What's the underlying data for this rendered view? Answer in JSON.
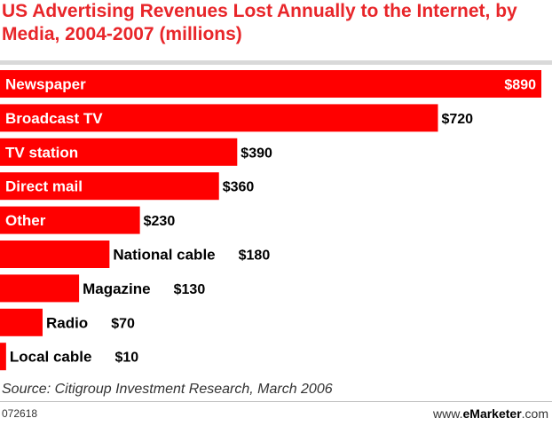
{
  "chart_data": {
    "type": "bar",
    "orientation": "horizontal",
    "title": "US Advertising Revenues Lost Annually to the Internet, by Media, 2004-2007 (millions)",
    "categories": [
      "Newspaper",
      "Broadcast TV",
      "TV station",
      "Direct mail",
      "Other",
      "National cable",
      "Magazine",
      "Radio",
      "Local cable"
    ],
    "values": [
      890,
      720,
      390,
      360,
      230,
      180,
      130,
      70,
      10
    ],
    "value_labels": [
      "$890",
      "$720",
      "$390",
      "$360",
      "$230",
      "$180",
      "$130",
      "$70",
      "$10"
    ],
    "xlim": [
      0,
      890
    ],
    "grid": false,
    "bar_color": "#ff0000",
    "title_color": "#e8262a"
  },
  "source": "Source: Citigroup Investment Research, March 2006",
  "chart_id": "072618",
  "brand_prefix": "www.",
  "brand_name": "eMarketer",
  "brand_suffix": ".com"
}
